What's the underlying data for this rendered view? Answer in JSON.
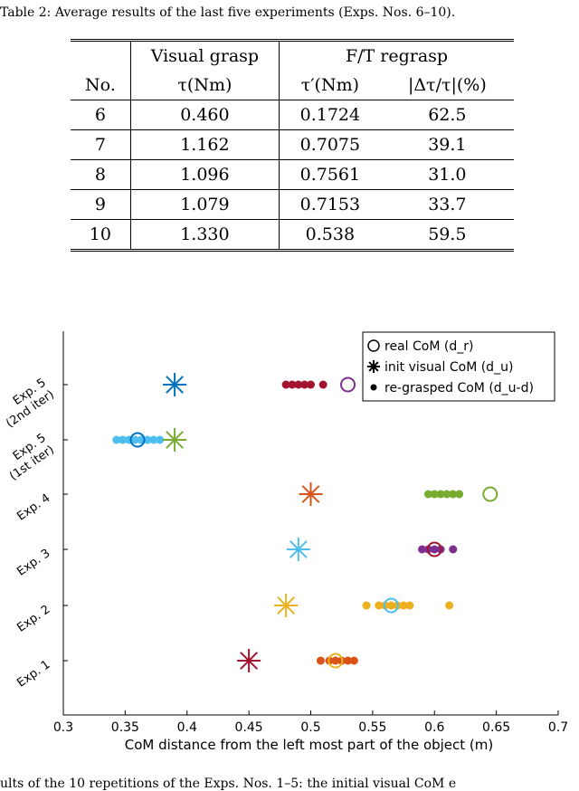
{
  "caption_top": "Table 2: Average results of the last five experiments (Exps. Nos. 6–10).",
  "table": {
    "group_headers": [
      "",
      "Visual grasp",
      "F/T regrasp",
      ""
    ],
    "col_headers": [
      "No.",
      "τ(Nm)",
      "τ′(Nm)",
      "|Δτ/τ|(%)"
    ],
    "rows": [
      [
        "6",
        "0.460",
        "0.1724",
        "62.5"
      ],
      [
        "7",
        "1.162",
        "0.7075",
        "39.1"
      ],
      [
        "8",
        "1.096",
        "0.7561",
        "31.0"
      ],
      [
        "9",
        "1.079",
        "0.7153",
        "33.7"
      ],
      [
        "10",
        "1.330",
        "0.538",
        "59.5"
      ]
    ]
  },
  "chart_data": {
    "type": "scatter",
    "xlabel": "CoM distance from the left most part of the object (m)",
    "xlim": [
      0.3,
      0.7
    ],
    "xticks": [
      "0.3",
      "0.35",
      "0.4",
      "0.45",
      "0.5",
      "0.55",
      "0.6",
      "0.65",
      "0.7"
    ],
    "categories": [
      "Exp. 1",
      "Exp. 2",
      "Exp. 3",
      "Exp. 4",
      "Exp. 5 (1st iter)",
      "Exp. 5 (2nd iter)"
    ],
    "legend": {
      "placement": "top-right",
      "entries": [
        "real CoM (d_r)",
        "init visual CoM (d_u)",
        "re-grasped CoM (d_u-d)"
      ]
    },
    "rows": [
      {
        "label": "Exp. 1",
        "label_lines": [
          "Exp. 1"
        ],
        "color": "#D95319",
        "real": 0.52,
        "visual": 0.45,
        "regrasped": [
          0.508,
          0.515,
          0.52,
          0.525,
          0.53,
          0.535
        ]
      },
      {
        "label": "Exp. 2",
        "label_lines": [
          "Exp. 2"
        ],
        "color": "#EDB120",
        "real": 0.565,
        "visual": 0.48,
        "regrasped": [
          0.545,
          0.555,
          0.56,
          0.565,
          0.57,
          0.575,
          0.58,
          0.612
        ]
      },
      {
        "label": "Exp. 3",
        "label_lines": [
          "Exp. 3"
        ],
        "color": "#7E2F8E",
        "real": 0.6,
        "visual": 0.49,
        "regrasped": [
          0.59,
          0.595,
          0.6,
          0.605,
          0.615
        ]
      },
      {
        "label": "Exp. 4",
        "label_lines": [
          "Exp. 4"
        ],
        "color": "#77AC30",
        "real": 0.645,
        "visual": 0.5,
        "regrasped": [
          0.595,
          0.6,
          0.605,
          0.61,
          0.615,
          0.62
        ]
      },
      {
        "label": "Exp. 5 (1st iter)",
        "label_lines": [
          "Exp. 5",
          "(1st iter)"
        ],
        "color": "#4DBEEE",
        "real": 0.36,
        "visual": 0.39,
        "regrasped": [
          0.343,
          0.348,
          0.353,
          0.358,
          0.363,
          0.368,
          0.373,
          0.378
        ]
      },
      {
        "label": "Exp. 5 (2nd iter)",
        "label_lines": [
          "Exp. 5",
          "(2nd iter)"
        ],
        "color": "#A2142F",
        "real": 0.53,
        "visual": 0.39,
        "regrasped": [
          0.48,
          0.485,
          0.49,
          0.495,
          0.5,
          0.51
        ]
      }
    ],
    "visual_marker_colors": [
      "#A2142F",
      "#EDB120",
      "#4DBEEE",
      "#D95319",
      "#77AC30",
      "#0072BD"
    ],
    "real_marker_colors": [
      "#EDB120",
      "#4DBEEE",
      "#A2142F",
      "#77AC30",
      "#0072BD",
      "#7E2F8E"
    ]
  },
  "caption_bottom": "ults of the 10 repetitions of the Exps. Nos. 1–5: the initial visual CoM e"
}
